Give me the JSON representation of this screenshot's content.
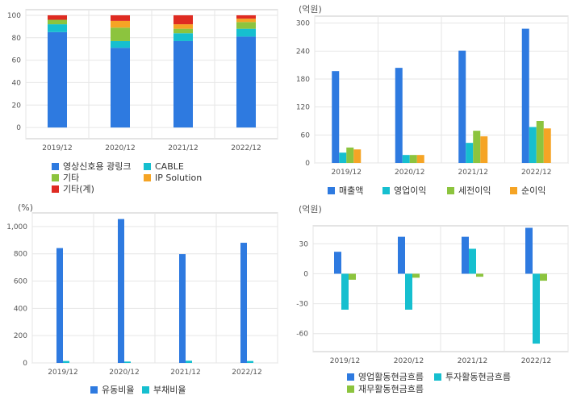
{
  "colors": {
    "blue": "#2e7ae0",
    "cyan": "#16bfcf",
    "green": "#8cc43e",
    "orange": "#f5a425",
    "red": "#df2b22",
    "grid": "#e6e6e6",
    "frame": "#c8c8c8"
  },
  "chart_data": [
    {
      "type": "bar",
      "stacked": true,
      "categories": [
        "2019/12",
        "2020/12",
        "2021/12",
        "2022/12"
      ],
      "ylim": [
        -10,
        105
      ],
      "yticks": [
        0,
        20,
        40,
        60,
        80,
        100
      ],
      "unit": "",
      "series": [
        {
          "name": "영상신호용 광링크",
          "color": "#2e7ae0",
          "values": [
            85,
            71,
            77,
            81
          ]
        },
        {
          "name": "CABLE",
          "color": "#16bfcf",
          "values": [
            7,
            6,
            7,
            7
          ]
        },
        {
          "name": "기타",
          "color": "#8cc43e",
          "values": [
            4,
            12,
            4,
            6
          ]
        },
        {
          "name": "IP Solution",
          "color": "#f5a425",
          "values": [
            0,
            6,
            4,
            3
          ]
        },
        {
          "name": "기타(계)",
          "color": "#df2b22",
          "values": [
            4,
            5,
            8,
            3
          ]
        }
      ],
      "grid": true
    },
    {
      "type": "bar",
      "categories": [
        "2019/12",
        "2020/12",
        "2021/12",
        "2022/12"
      ],
      "ylim": [
        0,
        315
      ],
      "yticks": [
        0,
        60,
        120,
        180,
        240,
        300
      ],
      "unit": "(억원)",
      "series": [
        {
          "name": "매출액",
          "color": "#2e7ae0",
          "values": [
            197,
            204,
            241,
            288
          ]
        },
        {
          "name": "영업이익",
          "color": "#16bfcf",
          "values": [
            22,
            17,
            43,
            77
          ]
        },
        {
          "name": "세전이익",
          "color": "#8cc43e",
          "values": [
            33,
            17,
            69,
            90
          ]
        },
        {
          "name": "순이익",
          "color": "#f5a425",
          "values": [
            29,
            17,
            57,
            74
          ]
        }
      ],
      "grid": true
    },
    {
      "type": "bar",
      "categories": [
        "2019/12",
        "2020/12",
        "2021/12",
        "2022/12"
      ],
      "ylim": [
        0,
        1100
      ],
      "yticks": [
        0,
        200,
        400,
        600,
        800,
        "1,000"
      ],
      "unit": "(%)",
      "series": [
        {
          "name": "유동비율",
          "color": "#2e7ae0",
          "values": [
            842,
            1055,
            798,
            881
          ]
        },
        {
          "name": "부채비율",
          "color": "#16bfcf",
          "values": [
            14,
            10,
            16,
            14
          ]
        }
      ],
      "grid": true
    },
    {
      "type": "bar",
      "categories": [
        "2019/12",
        "2020/12",
        "2021/12",
        "2022/12"
      ],
      "ylim": [
        -78,
        48
      ],
      "yticks": [
        -60,
        -30,
        0,
        30
      ],
      "unit": "(억원)",
      "series": [
        {
          "name": "영업활동현금흐름",
          "color": "#2e7ae0",
          "values": [
            22,
            37,
            37,
            46
          ]
        },
        {
          "name": "투자활동현금흐름",
          "color": "#16bfcf",
          "values": [
            -36,
            -36,
            25,
            -70
          ]
        },
        {
          "name": "재무활동현금흐름",
          "color": "#8cc43e",
          "values": [
            -6,
            -4,
            -3,
            -7
          ]
        }
      ],
      "grid": true
    }
  ]
}
